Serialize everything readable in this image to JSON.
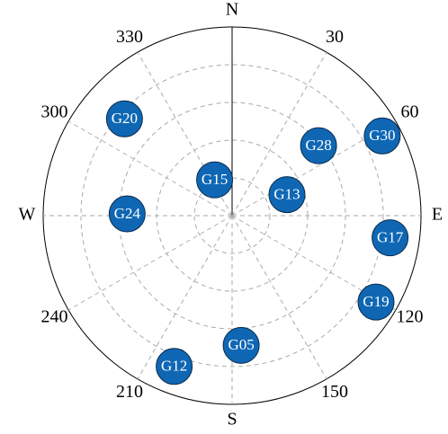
{
  "chart_data": {
    "type": "skyplot",
    "categories": [
      "G20",
      "G28",
      "G30",
      "G15",
      "G13",
      "G24",
      "G17",
      "G19",
      "G05",
      "G12"
    ],
    "azimuth": [
      312,
      51,
      62,
      334,
      69,
      271,
      98,
      121,
      176,
      201
    ],
    "elevation": [
      21,
      37,
      9,
      71,
      62,
      40,
      14,
      10,
      28,
      13
    ],
    "color": "#0f67b4",
    "angle_ticks": [
      {
        "value": 0,
        "label": "N"
      },
      30,
      60,
      {
        "value": 90,
        "label": "E"
      },
      120,
      150,
      {
        "value": 180,
        "label": "S"
      },
      210,
      240,
      {
        "value": 270,
        "label": "W"
      },
      300,
      330
    ],
    "rlim": [
      90,
      0
    ],
    "rticks": [
      18,
      36,
      54,
      72
    ],
    "grid": true
  }
}
